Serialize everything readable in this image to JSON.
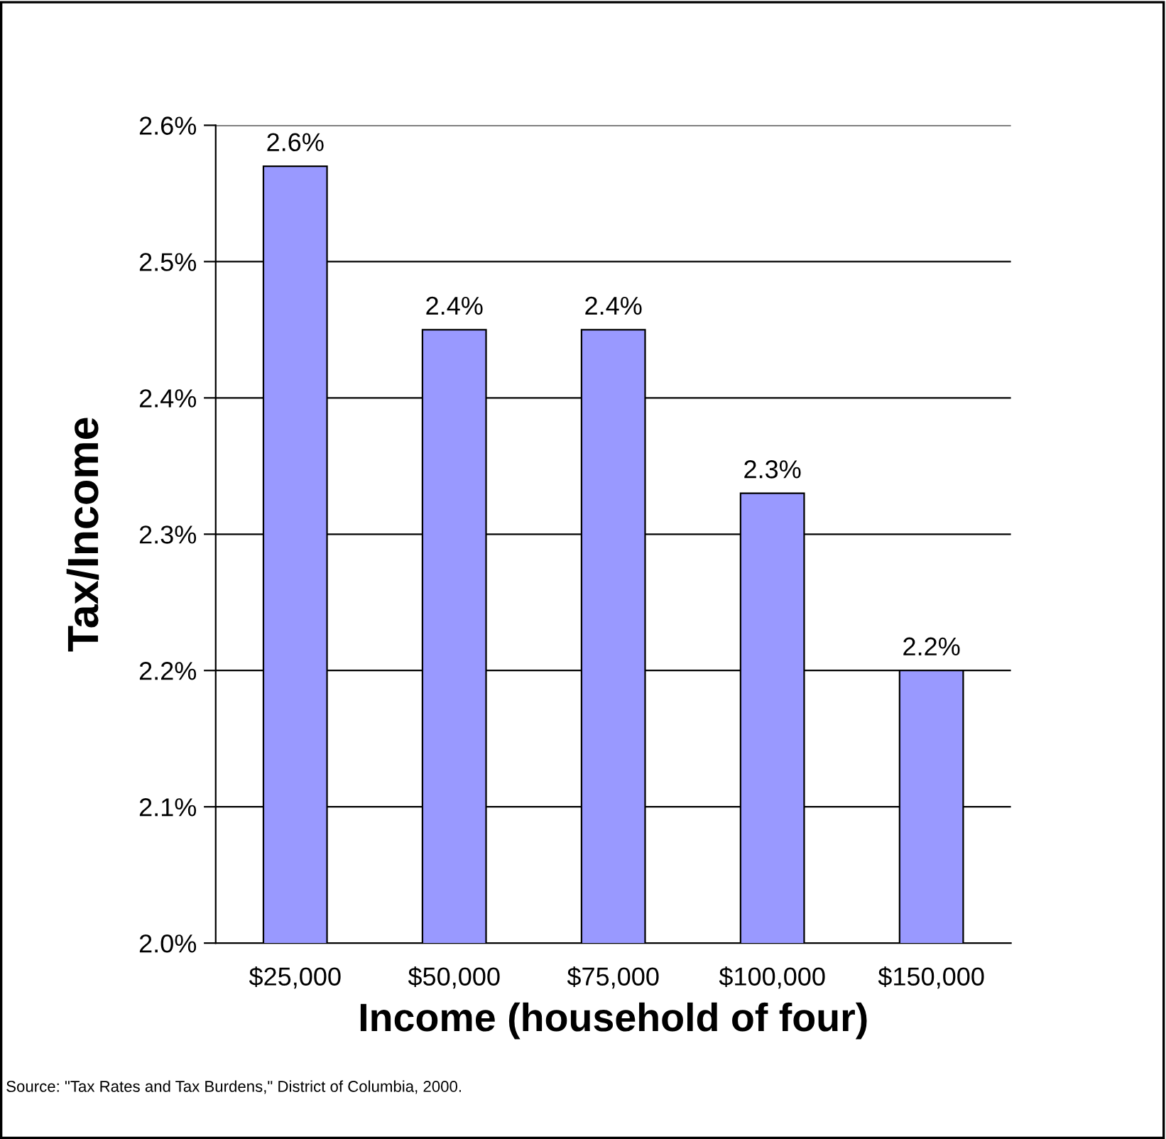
{
  "chart_data": {
    "type": "bar",
    "xlabel": "Income (household of four)",
    "ylabel": "Tax/Income",
    "categories": [
      "$25,000",
      "$50,000",
      "$75,000",
      "$100,000",
      "$150,000"
    ],
    "values": [
      2.57,
      2.45,
      2.45,
      2.33,
      2.2
    ],
    "value_labels": [
      "2.6%",
      "2.4%",
      "2.4%",
      "2.3%",
      "2.2%"
    ],
    "color": "#9999ff",
    "ylim": [
      2.0,
      2.6
    ],
    "yticks": [
      {
        "value": 2.0,
        "label": "2.0%"
      },
      {
        "value": 2.1,
        "label": "2.1%"
      },
      {
        "value": 2.2,
        "label": "2.2%"
      },
      {
        "value": 2.3,
        "label": "2.3%"
      },
      {
        "value": 2.4,
        "label": "2.4%"
      },
      {
        "value": 2.5,
        "label": "2.5%"
      },
      {
        "value": 2.6,
        "label": "2.6%"
      }
    ],
    "grid": "y",
    "annotations": [
      "Source: \"Tax Rates and Tax Burdens,\" District of Columbia, 2000."
    ]
  }
}
